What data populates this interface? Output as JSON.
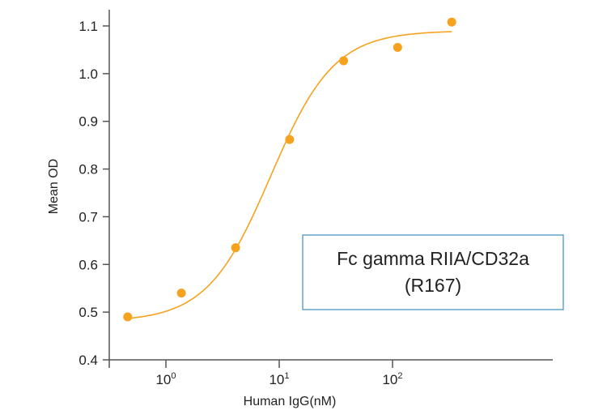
{
  "chart_data": {
    "type": "scatter",
    "title": "",
    "xlabel": "Human IgG(nM)",
    "ylabel": "Mean OD",
    "x_scale": "log",
    "xlim": [
      0.15,
      2000
    ],
    "ylim": [
      0.4,
      1.13
    ],
    "x_ticks": [
      {
        "value": 1,
        "base": "10",
        "exp": "0"
      },
      {
        "value": 10,
        "base": "10",
        "exp": "1"
      },
      {
        "value": 100,
        "base": "10",
        "exp": "2"
      }
    ],
    "y_ticks": [
      {
        "value": 0.4,
        "label": "0.4"
      },
      {
        "value": 0.5,
        "label": "0.5"
      },
      {
        "value": 0.6,
        "label": "0.6"
      },
      {
        "value": 0.7,
        "label": "0.7"
      },
      {
        "value": 0.8,
        "label": "0.8"
      },
      {
        "value": 0.9,
        "label": "0.9"
      },
      {
        "value": 1.0,
        "label": "1.0"
      },
      {
        "value": 1.1,
        "label": "1.1"
      }
    ],
    "grid": false,
    "series": [
      {
        "points": [
          {
            "x": 0.46,
            "y": 0.49
          },
          {
            "x": 1.37,
            "y": 0.54
          },
          {
            "x": 4.12,
            "y": 0.635
          },
          {
            "x": 12.35,
            "y": 0.862
          },
          {
            "x": 37.0,
            "y": 1.027
          },
          {
            "x": 111.0,
            "y": 1.055
          },
          {
            "x": 333.0,
            "y": 1.108
          }
        ],
        "color": "#f5a21f"
      }
    ],
    "fit_curve": {
      "bottom": 0.48,
      "top": 1.09,
      "ec50": 8.4,
      "hill": 1.55,
      "x_start": 0.46,
      "x_end": 333.0,
      "color": "#f5a21f"
    },
    "legend": {
      "lines": [
        "Fc gamma RIIA/CD32a",
        "(R167)"
      ],
      "placement": "lower-right",
      "border_color": "#3a8fc0"
    },
    "axis_color": "#555555"
  }
}
